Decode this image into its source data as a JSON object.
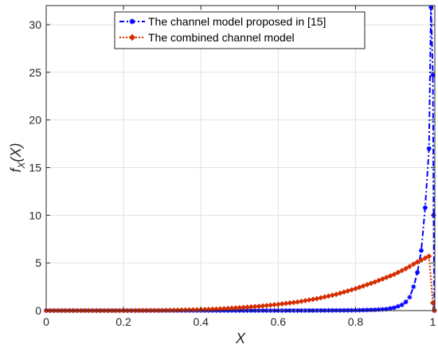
{
  "chart_data": {
    "type": "line",
    "title": "",
    "xlabel": "X",
    "ylabel_main": "f",
    "ylabel_sub": "X",
    "ylabel_arg": "(X)",
    "xlim": [
      0,
      1.005
    ],
    "ylim": [
      0,
      32
    ],
    "x_ticks": [
      0,
      0.2,
      0.4,
      0.6,
      0.8,
      1
    ],
    "x_tick_labels": [
      "0",
      "0.2",
      "0.4",
      "0.6",
      "0.8",
      "1"
    ],
    "y_ticks": [
      0,
      5,
      10,
      15,
      20,
      25,
      30
    ],
    "y_tick_labels": [
      "0",
      "5",
      "10",
      "15",
      "20",
      "25",
      "30"
    ],
    "grid": true,
    "legend_position": "top-center",
    "series": [
      {
        "name": "The channel model proposed in [15]",
        "color": "#0000ff",
        "line_style": "dash-dot",
        "marker": "star",
        "points": [
          [
            0,
            0
          ],
          [
            0.1,
            0
          ],
          [
            0.2,
            0
          ],
          [
            0.3,
            0
          ],
          [
            0.4,
            0
          ],
          [
            0.5,
            0
          ],
          [
            0.6,
            0
          ],
          [
            0.7,
            0.01
          ],
          [
            0.8,
            0.03
          ],
          [
            0.85,
            0.08
          ],
          [
            0.88,
            0.15
          ],
          [
            0.9,
            0.3
          ],
          [
            0.92,
            0.6
          ],
          [
            0.93,
            0.9
          ],
          [
            0.94,
            1.4
          ],
          [
            0.95,
            2.5
          ],
          [
            0.96,
            4.0
          ],
          [
            0.97,
            6.3
          ],
          [
            0.98,
            10.8
          ],
          [
            0.99,
            17.0
          ],
          [
            0.995,
            31.8
          ],
          [
            1.0,
            24.7
          ],
          [
            1.002,
            10.0
          ],
          [
            1.004,
            0
          ]
        ]
      },
      {
        "name": "The combined channel model",
        "color": "#d62d00",
        "line_style": "dotted",
        "marker": "diamond",
        "points": [
          [
            0,
            0
          ],
          [
            0.1,
            0
          ],
          [
            0.2,
            0
          ],
          [
            0.3,
            0.02
          ],
          [
            0.4,
            0.1
          ],
          [
            0.45,
            0.18
          ],
          [
            0.5,
            0.3
          ],
          [
            0.55,
            0.45
          ],
          [
            0.6,
            0.65
          ],
          [
            0.65,
            0.9
          ],
          [
            0.7,
            1.25
          ],
          [
            0.75,
            1.7
          ],
          [
            0.8,
            2.3
          ],
          [
            0.85,
            3.0
          ],
          [
            0.9,
            3.8
          ],
          [
            0.93,
            4.4
          ],
          [
            0.96,
            5.1
          ],
          [
            0.99,
            5.7
          ],
          [
            1.0,
            0.8
          ],
          [
            1.004,
            0
          ]
        ]
      }
    ]
  }
}
